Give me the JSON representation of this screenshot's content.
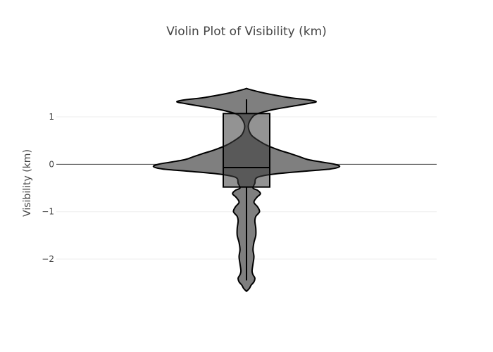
{
  "chart_data": {
    "type": "violin",
    "title": "Violin Plot of Visibility (km)",
    "xlabel": "",
    "ylabel": "Visibility (km)",
    "ylim": [
      -2.92,
      1.98
    ],
    "yticks": [
      1,
      0,
      -1,
      -2
    ],
    "ytick_labels": [
      "1",
      "0",
      "−1",
      "−2"
    ],
    "grid": true,
    "zeroline": true,
    "colors": {
      "fill": "#7f7f7f",
      "line": "#000000",
      "box_fill": "#3a3a3a"
    },
    "box": {
      "q1": -0.48,
      "median": -0.07,
      "q3": 1.07,
      "whisker_low": -2.45,
      "whisker_high": 1.37
    },
    "density": [
      {
        "y": 1.6,
        "w": 0.0
      },
      {
        "y": 1.58,
        "w": 0.03
      },
      {
        "y": 1.52,
        "w": 0.15
      },
      {
        "y": 1.46,
        "w": 0.3
      },
      {
        "y": 1.4,
        "w": 0.48
      },
      {
        "y": 1.36,
        "w": 0.66
      },
      {
        "y": 1.32,
        "w": 0.75
      },
      {
        "y": 1.28,
        "w": 0.66
      },
      {
        "y": 1.22,
        "w": 0.48
      },
      {
        "y": 1.15,
        "w": 0.28
      },
      {
        "y": 1.06,
        "w": 0.11
      },
      {
        "y": 0.96,
        "w": 0.05
      },
      {
        "y": 0.82,
        "w": 0.02
      },
      {
        "y": 0.7,
        "w": 0.03
      },
      {
        "y": 0.6,
        "w": 0.06
      },
      {
        "y": 0.5,
        "w": 0.13
      },
      {
        "y": 0.4,
        "w": 0.22
      },
      {
        "y": 0.3,
        "w": 0.35
      },
      {
        "y": 0.22,
        "w": 0.48
      },
      {
        "y": 0.16,
        "w": 0.57
      },
      {
        "y": 0.1,
        "w": 0.66
      },
      {
        "y": 0.05,
        "w": 0.8
      },
      {
        "y": 0.0,
        "w": 0.95
      },
      {
        "y": -0.05,
        "w": 1.0
      },
      {
        "y": -0.1,
        "w": 0.9
      },
      {
        "y": -0.15,
        "w": 0.6
      },
      {
        "y": -0.2,
        "w": 0.32
      },
      {
        "y": -0.25,
        "w": 0.16
      },
      {
        "y": -0.3,
        "w": 0.1
      },
      {
        "y": -0.4,
        "w": 0.09
      },
      {
        "y": -0.5,
        "w": 0.07
      },
      {
        "y": -0.55,
        "w": 0.12
      },
      {
        "y": -0.62,
        "w": 0.15
      },
      {
        "y": -0.7,
        "w": 0.11
      },
      {
        "y": -0.8,
        "w": 0.08
      },
      {
        "y": -0.9,
        "w": 0.12
      },
      {
        "y": -1.0,
        "w": 0.14
      },
      {
        "y": -1.1,
        "w": 0.1
      },
      {
        "y": -1.2,
        "w": 0.09
      },
      {
        "y": -1.35,
        "w": 0.1
      },
      {
        "y": -1.5,
        "w": 0.1
      },
      {
        "y": -1.65,
        "w": 0.08
      },
      {
        "y": -1.8,
        "w": 0.07
      },
      {
        "y": -1.95,
        "w": 0.08
      },
      {
        "y": -2.1,
        "w": 0.07
      },
      {
        "y": -2.25,
        "w": 0.06
      },
      {
        "y": -2.33,
        "w": 0.07
      },
      {
        "y": -2.4,
        "w": 0.09
      },
      {
        "y": -2.48,
        "w": 0.08
      },
      {
        "y": -2.55,
        "w": 0.05
      },
      {
        "y": -2.62,
        "w": 0.03
      },
      {
        "y": -2.68,
        "w": 0.0
      }
    ]
  }
}
